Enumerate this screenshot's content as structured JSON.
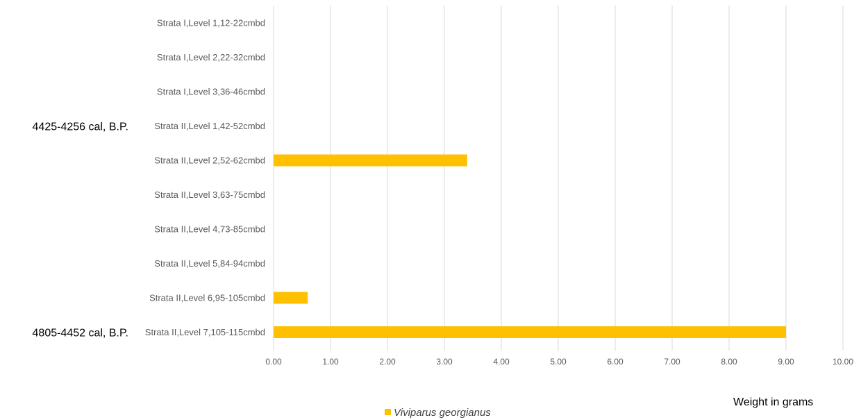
{
  "chart_data": {
    "type": "bar",
    "orientation": "horizontal",
    "categories": [
      "Strata I,Level 1,12-22cmbd",
      "Strata I,Level 2,22-32cmbd",
      "Strata I,Level 3,36-46cmbd",
      "Strata II,Level 1,42-52cmbd",
      "Strata II,Level 2,52-62cmbd",
      "Strata II,Level 3,63-75cmbd",
      "Strata II,Level 4,73-85cmbd",
      "Strata II,Level 5,84-94cmbd",
      "Strata II,Level 6,95-105cmbd",
      "Strata II,Level 7,105-115cmbd"
    ],
    "series": [
      {
        "name": "Viviparus georgianus",
        "color": "#FFC000",
        "values": [
          0,
          0,
          0,
          0,
          3.4,
          0,
          0,
          0,
          0.6,
          9.0
        ]
      }
    ],
    "xlim": [
      0,
      10
    ],
    "x_ticks": [
      "0.00",
      "1.00",
      "2.00",
      "3.00",
      "4.00",
      "5.00",
      "6.00",
      "7.00",
      "8.00",
      "9.00",
      "10.00"
    ],
    "xlabel": "Weight in grams",
    "grid": "vertical",
    "legend_position": "bottom",
    "annotations": [
      {
        "text": "4425-4256 cal, B.P.",
        "category": "Strata II,Level 1,42-52cmbd"
      },
      {
        "text": "4805-4452 cal, B.P.",
        "category": "Strata II,Level 7,105-115cmbd"
      }
    ]
  }
}
